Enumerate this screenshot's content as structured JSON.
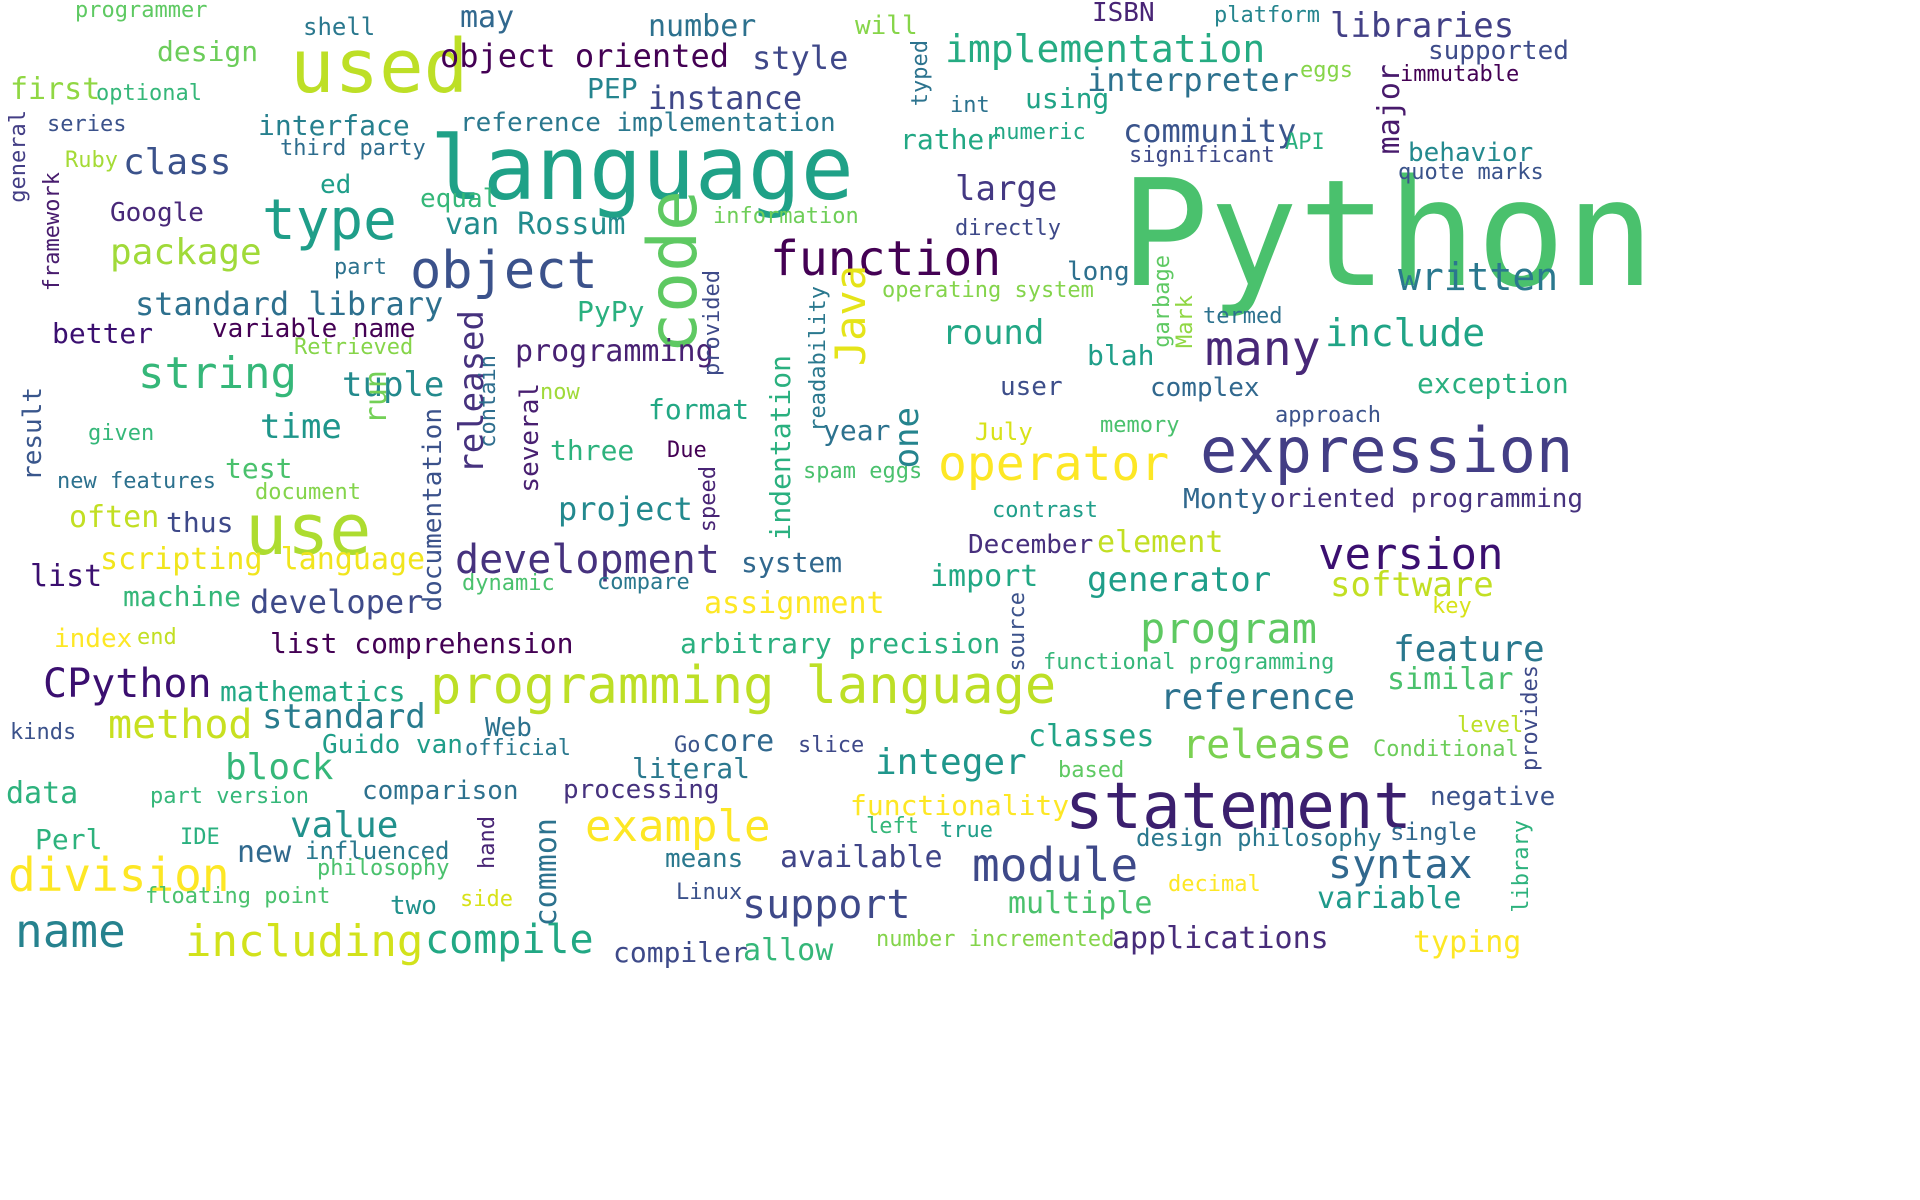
{
  "words": [
    {
      "text": "Python",
      "color": "#4ac16d"
    },
    {
      "text": "language",
      "color": "#1fa187"
    },
    {
      "text": "used",
      "color": "#bddf26"
    },
    {
      "text": "expression",
      "color": "#433e85"
    },
    {
      "text": "programming language",
      "color": "#bddf26"
    },
    {
      "text": "statement",
      "color": "#3b1f6e"
    },
    {
      "text": "object",
      "color": "#3b528b"
    },
    {
      "text": "use",
      "color": "#addc30"
    },
    {
      "text": "type",
      "color": "#1f9e89"
    },
    {
      "text": "code",
      "color": "#5ec962"
    },
    {
      "text": "function",
      "color": "#440154"
    },
    {
      "text": "operator",
      "color": "#fde725"
    },
    {
      "text": "version",
      "color": "#3b0f70"
    },
    {
      "text": "module",
      "color": "#3e4989"
    },
    {
      "text": "development",
      "color": "#46327e"
    },
    {
      "text": "name",
      "color": "#26828e"
    },
    {
      "text": "division",
      "color": "#fde725"
    },
    {
      "text": "including",
      "color": "#d2e21b"
    },
    {
      "text": "example",
      "color": "#fde725"
    },
    {
      "text": "many",
      "color": "#482878"
    },
    {
      "text": "implementation",
      "color": "#25ab82"
    },
    {
      "text": "Java",
      "color": "#e5e419"
    },
    {
      "text": "string",
      "color": "#35b779"
    },
    {
      "text": "CPython",
      "color": "#3b0f70"
    },
    {
      "text": "method",
      "color": "#c8e020"
    },
    {
      "text": "release",
      "color": "#7ad151"
    },
    {
      "text": "program",
      "color": "#5ec962"
    },
    {
      "text": "syntax",
      "color": "#31688e"
    },
    {
      "text": "support",
      "color": "#3e4989"
    },
    {
      "text": "compile",
      "color": "#22a884"
    },
    {
      "text": "written",
      "color": "#2a788e"
    },
    {
      "text": "include",
      "color": "#20a486"
    },
    {
      "text": "class",
      "color": "#3b528b"
    },
    {
      "text": "package",
      "color": "#a0da39"
    },
    {
      "text": "large",
      "color": "#443983"
    },
    {
      "text": "libraries",
      "color": "#424086"
    },
    {
      "text": "interpreter",
      "color": "#2c718e"
    },
    {
      "text": "object oriented",
      "color": "#440154"
    },
    {
      "text": "released",
      "color": "#46327e"
    },
    {
      "text": "generator",
      "color": "#1f9e89"
    },
    {
      "text": "feature",
      "color": "#2a788e"
    },
    {
      "text": "reference",
      "color": "#2c728e"
    },
    {
      "text": "standard library",
      "color": "#2d708e"
    },
    {
      "text": "standard",
      "color": "#287c8e"
    },
    {
      "text": "value",
      "color": "#21918c"
    },
    {
      "text": "block",
      "color": "#35b779"
    },
    {
      "text": "integer",
      "color": "#1f968b"
    },
    {
      "text": "software",
      "color": "#c2df23"
    },
    {
      "text": "time",
      "color": "#1f968b"
    },
    {
      "text": "tuple",
      "color": "#238a8d"
    },
    {
      "text": "round",
      "color": "#22a785"
    },
    {
      "text": "project",
      "color": "#23898e"
    },
    {
      "text": "developer",
      "color": "#3e4a89"
    },
    {
      "text": "style",
      "color": "#3f4889"
    },
    {
      "text": "instance",
      "color": "#3f4788"
    },
    {
      "text": "community",
      "color": "#3a548c"
    },
    {
      "text": "design",
      "color": "#6ccd5a"
    },
    {
      "text": "first",
      "color": "#90d743"
    },
    {
      "text": "interface",
      "color": "#27808e"
    },
    {
      "text": "van Rossum",
      "color": "#228c8d"
    },
    {
      "text": "programming",
      "color": "#482173"
    },
    {
      "text": "list",
      "color": "#3b0f70"
    },
    {
      "text": "list comprehension",
      "color": "#440154"
    },
    {
      "text": "assignment",
      "color": "#fde725"
    },
    {
      "text": "import",
      "color": "#22a884"
    },
    {
      "text": "similar",
      "color": "#4ac16d"
    },
    {
      "text": "exception",
      "color": "#29af7f"
    },
    {
      "text": "classes",
      "color": "#20a386"
    },
    {
      "text": "multiple",
      "color": "#4ac16d"
    },
    {
      "text": "variable",
      "color": "#1f9a8a"
    },
    {
      "text": "applications",
      "color": "#472c7a"
    },
    {
      "text": "available",
      "color": "#404588"
    },
    {
      "text": "new",
      "color": "#30698e"
    },
    {
      "text": "often",
      "color": "#c2df23"
    },
    {
      "text": "scripting language",
      "color": "#f1e51d"
    },
    {
      "text": "number",
      "color": "#2d718e"
    },
    {
      "text": "may",
      "color": "#31688e"
    },
    {
      "text": "shell",
      "color": "#2a788e"
    },
    {
      "text": "programmer",
      "color": "#5ec962"
    },
    {
      "text": "will",
      "color": "#86d549"
    },
    {
      "text": "ISBN",
      "color": "#482475"
    },
    {
      "text": "platform",
      "color": "#25858e"
    },
    {
      "text": "supported",
      "color": "#3e4c8a"
    },
    {
      "text": "eggs",
      "color": "#86d549"
    },
    {
      "text": "immutable",
      "color": "#440154"
    },
    {
      "text": "major",
      "color": "#481a6c"
    },
    {
      "text": "typed",
      "color": "#2c738e"
    },
    {
      "text": "int",
      "color": "#2c728e"
    },
    {
      "text": "using",
      "color": "#20a386"
    },
    {
      "text": "numeric",
      "color": "#22a785"
    },
    {
      "text": "API",
      "color": "#2ab07f"
    },
    {
      "text": "significant",
      "color": "#3e4a89"
    },
    {
      "text": "behavior",
      "color": "#23898e"
    },
    {
      "text": "quote marks",
      "color": "#3a538b"
    },
    {
      "text": "PEP",
      "color": "#25848e"
    },
    {
      "text": "reference implementation",
      "color": "#2a788e"
    },
    {
      "text": "optional",
      "color": "#35b779"
    },
    {
      "text": "series",
      "color": "#3b528b"
    },
    {
      "text": "third party",
      "color": "#2e6d8e"
    },
    {
      "text": "rather",
      "color": "#22a884"
    },
    {
      "text": "Ruby",
      "color": "#a5db36"
    },
    {
      "text": "general",
      "color": "#433e85"
    },
    {
      "text": "framework",
      "color": "#481c6e"
    },
    {
      "text": "Google",
      "color": "#482878"
    },
    {
      "text": "ed",
      "color": "#1f9e89"
    },
    {
      "text": "equal",
      "color": "#35b779"
    },
    {
      "text": "information",
      "color": "#6ece58"
    },
    {
      "text": "directly",
      "color": "#3e4989"
    },
    {
      "text": "part",
      "color": "#2c728e"
    },
    {
      "text": "long",
      "color": "#2d708e"
    },
    {
      "text": "garbage",
      "color": "#5ec962"
    },
    {
      "text": "Mark",
      "color": "#90d743"
    },
    {
      "text": "termed",
      "color": "#2c718e"
    },
    {
      "text": "operating system",
      "color": "#84d44b"
    },
    {
      "text": "readability",
      "color": "#2a788e"
    },
    {
      "text": "provided",
      "color": "#3e4a89"
    },
    {
      "text": "PyPy",
      "color": "#2ab07f"
    },
    {
      "text": "contain",
      "color": "#2e6e8e"
    },
    {
      "text": "better",
      "color": "#3b0f70"
    },
    {
      "text": "variable name",
      "color": "#440154"
    },
    {
      "text": "Retrieved",
      "color": "#86d549"
    },
    {
      "text": "blah",
      "color": "#1f9e89"
    },
    {
      "text": "complex",
      "color": "#31688e"
    },
    {
      "text": "user",
      "color": "#3d4e8a"
    },
    {
      "text": "now",
      "color": "#a0da39"
    },
    {
      "text": "result",
      "color": "#39568c"
    },
    {
      "text": "given",
      "color": "#35b779"
    },
    {
      "text": "run",
      "color": "#73d056"
    },
    {
      "text": "documentation",
      "color": "#3b528b"
    },
    {
      "text": "several",
      "color": "#481f70"
    },
    {
      "text": "three",
      "color": "#2db27d"
    },
    {
      "text": "Due",
      "color": "#440154"
    },
    {
      "text": "format",
      "color": "#22a884"
    },
    {
      "text": "indentation",
      "color": "#2ab07f"
    },
    {
      "text": "year",
      "color": "#2c728e"
    },
    {
      "text": "one",
      "color": "#25848e"
    },
    {
      "text": "July",
      "color": "#d8e219"
    },
    {
      "text": "memory",
      "color": "#4ac16d"
    },
    {
      "text": "approach",
      "color": "#3b528b"
    },
    {
      "text": "spam eggs",
      "color": "#4ac16d"
    },
    {
      "text": "Monty",
      "color": "#31688e"
    },
    {
      "text": "oriented programming",
      "color": "#46327e"
    },
    {
      "text": "test",
      "color": "#4ac16d"
    },
    {
      "text": "new features",
      "color": "#2c718e"
    },
    {
      "text": "document",
      "color": "#84d44b"
    },
    {
      "text": "thus",
      "color": "#3e4989"
    },
    {
      "text": "speed",
      "color": "#482475"
    },
    {
      "text": "contrast",
      "color": "#1f9e89"
    },
    {
      "text": "December",
      "color": "#472f7d"
    },
    {
      "text": "element",
      "color": "#c2df23"
    },
    {
      "text": "dynamic",
      "color": "#4ac16d"
    },
    {
      "text": "compare",
      "color": "#2a788e"
    },
    {
      "text": "system",
      "color": "#31688e"
    },
    {
      "text": "machine",
      "color": "#35b779"
    },
    {
      "text": "source",
      "color": "#3b528b"
    },
    {
      "text": "key",
      "color": "#d8e219"
    },
    {
      "text": "index",
      "color": "#fde725"
    },
    {
      "text": "end",
      "color": "#c2df23"
    },
    {
      "text": "arbitrary precision",
      "color": "#2ab07f"
    },
    {
      "text": "functional programming",
      "color": "#35b779"
    },
    {
      "text": "mathematics",
      "color": "#22a884"
    },
    {
      "text": "provides",
      "color": "#3e4a89"
    },
    {
      "text": "level",
      "color": "#bddf26"
    },
    {
      "text": "Conditional",
      "color": "#6ccd5a"
    },
    {
      "text": "kinds",
      "color": "#3b528b"
    },
    {
      "text": "Web",
      "color": "#2c728e"
    },
    {
      "text": "Guido van",
      "color": "#1f9e89"
    },
    {
      "text": "official",
      "color": "#2a788e"
    },
    {
      "text": "Go",
      "color": "#3b528b"
    },
    {
      "text": "core",
      "color": "#31688e"
    },
    {
      "text": "slice",
      "color": "#3e4989"
    },
    {
      "text": "literal",
      "color": "#2a788e"
    },
    {
      "text": "based",
      "color": "#5ec962"
    },
    {
      "text": "negative",
      "color": "#3b528b"
    },
    {
      "text": "data",
      "color": "#2db27d"
    },
    {
      "text": "part version",
      "color": "#35b779"
    },
    {
      "text": "comparison",
      "color": "#2d718e"
    },
    {
      "text": "processing",
      "color": "#46327e"
    },
    {
      "text": "functionality",
      "color": "#fde725"
    },
    {
      "text": "left",
      "color": "#35b779"
    },
    {
      "text": "true",
      "color": "#1f9e89"
    },
    {
      "text": "design philosophy",
      "color": "#2a788e"
    },
    {
      "text": "single",
      "color": "#31688e"
    },
    {
      "text": "Perl",
      "color": "#2db27d"
    },
    {
      "text": "IDE",
      "color": "#2ab07f"
    },
    {
      "text": "influenced",
      "color": "#2a788e"
    },
    {
      "text": "philosophy",
      "color": "#4ac16d"
    },
    {
      "text": "hand",
      "color": "#482475"
    },
    {
      "text": "common",
      "color": "#2c728e"
    },
    {
      "text": "means",
      "color": "#2a788e"
    },
    {
      "text": "decimal",
      "color": "#fde725"
    },
    {
      "text": "library",
      "color": "#2db27d"
    },
    {
      "text": "floating point",
      "color": "#4ac16d"
    },
    {
      "text": "two",
      "color": "#21918c"
    },
    {
      "text": "side",
      "color": "#d8e219"
    },
    {
      "text": "Linux",
      "color": "#3b528b"
    },
    {
      "text": "number incremented",
      "color": "#84d44b"
    },
    {
      "text": "typing",
      "color": "#fde725"
    },
    {
      "text": "compiler",
      "color": "#3e4a89"
    },
    {
      "text": "allow",
      "color": "#35b779"
    }
  ]
}
